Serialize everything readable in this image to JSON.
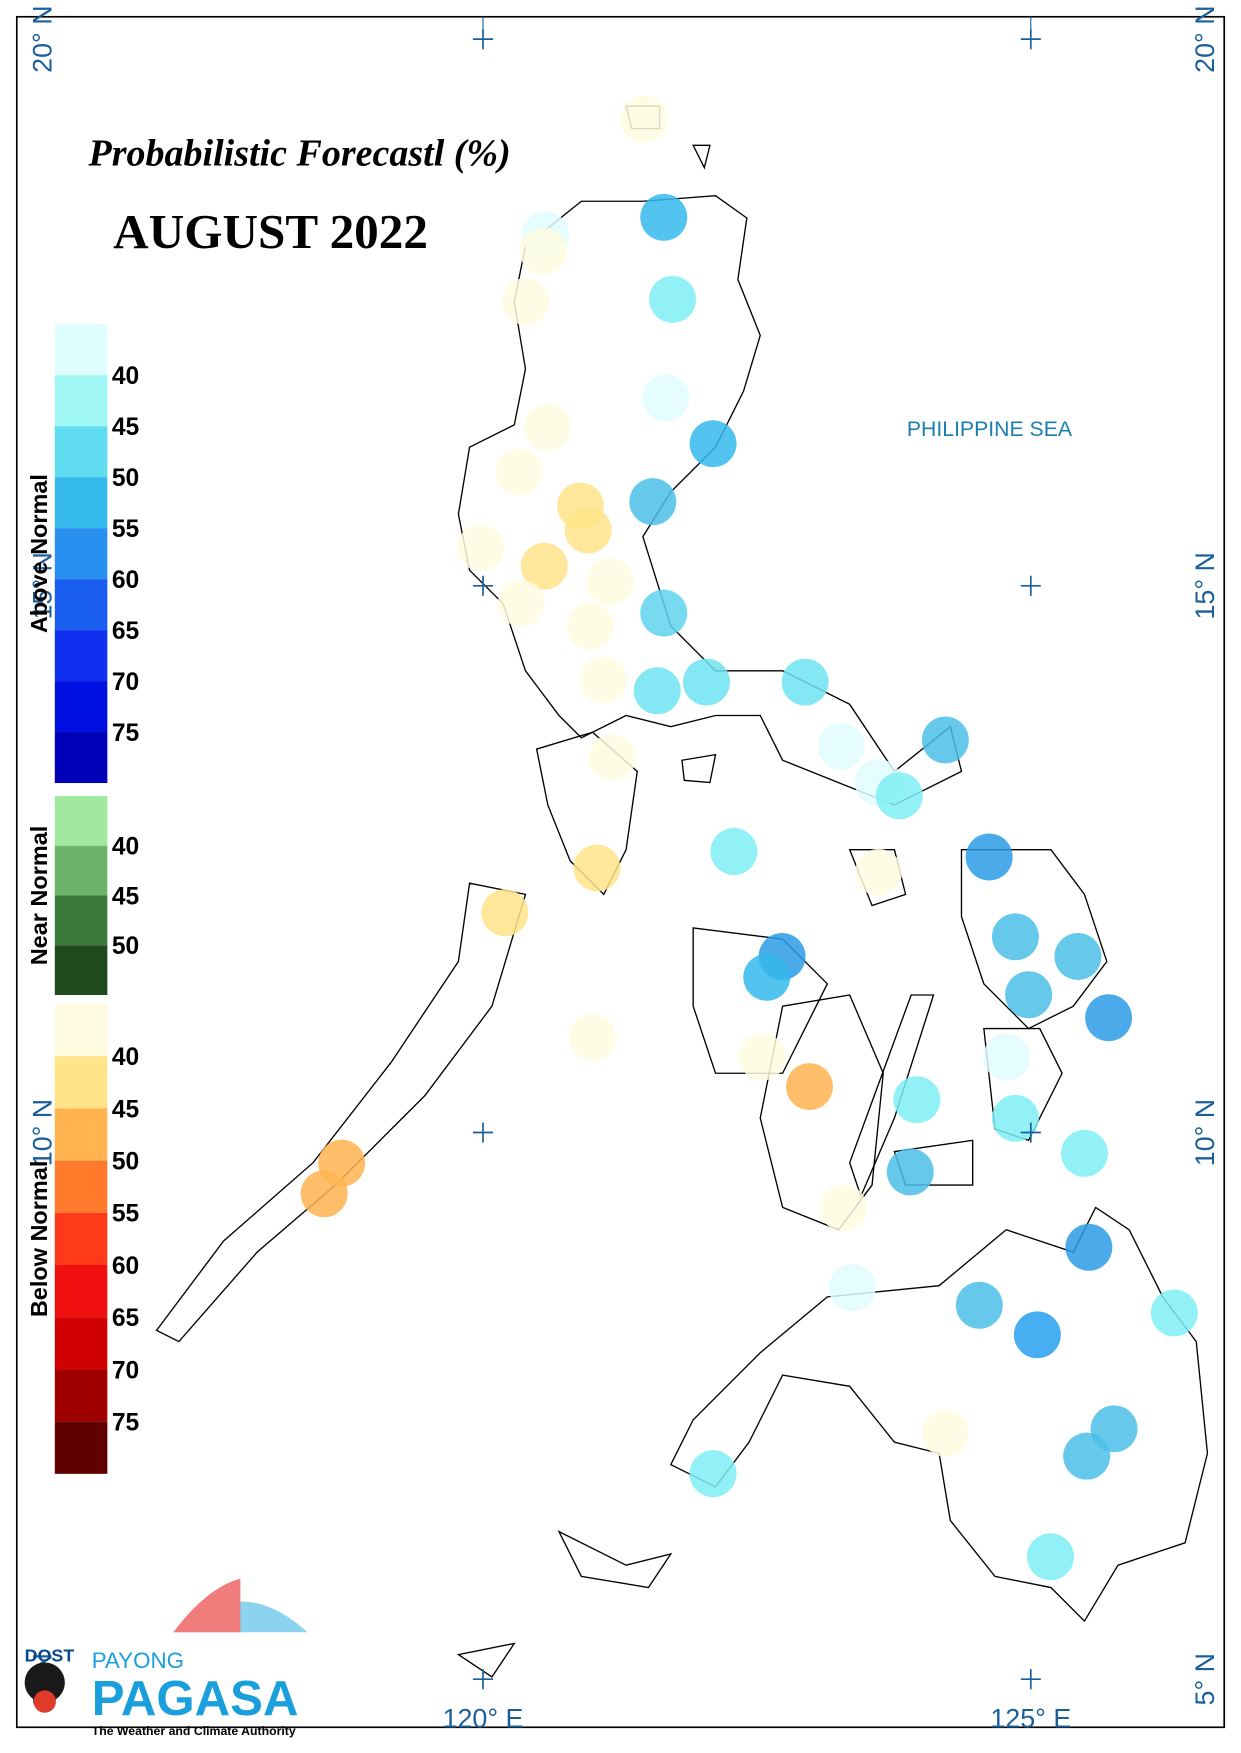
{
  "chart_data": {
    "type": "map",
    "title": "Probabilistic Forecastl (%)",
    "subtitle": "AUGUST 2022",
    "sea_label": "PHILIPPINE SEA",
    "xticks": [
      {
        "value": 120,
        "label": "120° E"
      },
      {
        "value": 125,
        "label": "125° E"
      }
    ],
    "yticks": [
      {
        "value": 20,
        "label": "20° N"
      },
      {
        "value": 15,
        "label": "15° N"
      },
      {
        "value": 10,
        "label": "10° N"
      },
      {
        "value": 5,
        "label": "5° N"
      }
    ],
    "legend": [
      {
        "title": "Above Normal",
        "colors": [
          "#e0fdff",
          "#a0f5f5",
          "#5fdcf0",
          "#35b8ec",
          "#2890f0",
          "#1a5ef0",
          "#0f30f0",
          "#0010e0",
          "#0000b8"
        ],
        "labels": [
          40,
          45,
          50,
          55,
          60,
          65,
          70,
          75
        ]
      },
      {
        "title": "Near Normal",
        "colors": [
          "#a0e8a0",
          "#6cb46c",
          "#3c7a3c",
          "#1e4a1e"
        ],
        "labels": [
          40,
          45,
          50
        ]
      },
      {
        "title": "Below Normal",
        "colors": [
          "#fffbe0",
          "#ffe48a",
          "#ffb450",
          "#ff7a2a",
          "#ff3a1a",
          "#f01010",
          "#d00000",
          "#a00000",
          "#600000"
        ],
        "labels": [
          40,
          45,
          50,
          55,
          60,
          65,
          70,
          75
        ]
      }
    ],
    "stations": [
      {
        "lon": 121.47,
        "lat": 19.27,
        "color": "#fffbe0"
      },
      {
        "lon": 121.65,
        "lat": 18.37,
        "color": "#35b8ec"
      },
      {
        "lon": 120.57,
        "lat": 18.21,
        "color": "#e0fdff"
      },
      {
        "lon": 120.55,
        "lat": 18.06,
        "color": "#fffbe0"
      },
      {
        "lon": 121.73,
        "lat": 17.62,
        "color": "#7eeef5"
      },
      {
        "lon": 120.39,
        "lat": 17.6,
        "color": "#fffbe0"
      },
      {
        "lon": 121.67,
        "lat": 16.72,
        "color": "#e0fdff"
      },
      {
        "lon": 120.59,
        "lat": 16.45,
        "color": "#fffbe0"
      },
      {
        "lon": 122.1,
        "lat": 16.3,
        "color": "#35b8ec"
      },
      {
        "lon": 120.33,
        "lat": 16.04,
        "color": "#fffbe0"
      },
      {
        "lon": 121.55,
        "lat": 15.77,
        "color": "#4bbfe8"
      },
      {
        "lon": 120.89,
        "lat": 15.73,
        "color": "#ffe48a"
      },
      {
        "lon": 120.96,
        "lat": 15.51,
        "color": "#ffe48a"
      },
      {
        "lon": 119.98,
        "lat": 15.35,
        "color": "#fffbe0"
      },
      {
        "lon": 120.56,
        "lat": 15.18,
        "color": "#ffe48a"
      },
      {
        "lon": 121.16,
        "lat": 15.04,
        "color": "#fffbe0"
      },
      {
        "lon": 120.35,
        "lat": 14.84,
        "color": "#fffbe0"
      },
      {
        "lon": 120.98,
        "lat": 14.63,
        "color": "#fffbe0"
      },
      {
        "lon": 121.65,
        "lat": 14.75,
        "color": "#5fd3ef"
      },
      {
        "lon": 121.1,
        "lat": 14.14,
        "color": "#fffbe0"
      },
      {
        "lon": 121.59,
        "lat": 14.04,
        "color": "#6ee4f2"
      },
      {
        "lon": 122.04,
        "lat": 14.12,
        "color": "#6ee4f2"
      },
      {
        "lon": 122.94,
        "lat": 14.12,
        "color": "#6ee4f2"
      },
      {
        "lon": 124.22,
        "lat": 13.59,
        "color": "#4bbfe8"
      },
      {
        "lon": 123.27,
        "lat": 13.53,
        "color": "#e0fdff"
      },
      {
        "lon": 121.18,
        "lat": 13.43,
        "color": "#fffbe0"
      },
      {
        "lon": 123.61,
        "lat": 13.2,
        "color": "#e0fdff"
      },
      {
        "lon": 123.8,
        "lat": 13.08,
        "color": "#7eeef5"
      },
      {
        "lon": 122.29,
        "lat": 12.57,
        "color": "#7eeef5"
      },
      {
        "lon": 124.62,
        "lat": 12.52,
        "color": "#2a9be6"
      },
      {
        "lon": 121.04,
        "lat": 12.42,
        "color": "#ffe48a"
      },
      {
        "lon": 123.61,
        "lat": 12.38,
        "color": "#fffbe0"
      },
      {
        "lon": 120.2,
        "lat": 12.01,
        "color": "#ffe48a"
      },
      {
        "lon": 124.86,
        "lat": 11.79,
        "color": "#4bbfe8"
      },
      {
        "lon": 125.43,
        "lat": 11.61,
        "color": "#4bbfe8"
      },
      {
        "lon": 122.73,
        "lat": 11.61,
        "color": "#2a9be6"
      },
      {
        "lon": 122.59,
        "lat": 11.42,
        "color": "#35b8ec"
      },
      {
        "lon": 124.98,
        "lat": 11.26,
        "color": "#4bbfe8"
      },
      {
        "lon": 125.71,
        "lat": 11.05,
        "color": "#2a9be6"
      },
      {
        "lon": 121.0,
        "lat": 10.87,
        "color": "#fffbe0"
      },
      {
        "lon": 122.55,
        "lat": 10.69,
        "color": "#fffbe0"
      },
      {
        "lon": 124.78,
        "lat": 10.69,
        "color": "#e0fdff"
      },
      {
        "lon": 122.98,
        "lat": 10.42,
        "color": "#ffb450"
      },
      {
        "lon": 123.96,
        "lat": 10.3,
        "color": "#7eeef5"
      },
      {
        "lon": 124.86,
        "lat": 10.13,
        "color": "#7eeef5"
      },
      {
        "lon": 118.71,
        "lat": 9.72,
        "color": "#ffb450"
      },
      {
        "lon": 125.49,
        "lat": 9.81,
        "color": "#7eeef5"
      },
      {
        "lon": 123.9,
        "lat": 9.64,
        "color": "#4bbfe8"
      },
      {
        "lon": 118.55,
        "lat": 9.44,
        "color": "#ffb450"
      },
      {
        "lon": 123.29,
        "lat": 9.31,
        "color": "#fffbe0"
      },
      {
        "lon": 125.53,
        "lat": 8.95,
        "color": "#2a9be6"
      },
      {
        "lon": 123.37,
        "lat": 8.58,
        "color": "#e0fdff"
      },
      {
        "lon": 124.53,
        "lat": 8.42,
        "color": "#4bbfe8"
      },
      {
        "lon": 126.31,
        "lat": 8.35,
        "color": "#7eeef5"
      },
      {
        "lon": 125.06,
        "lat": 8.15,
        "color": "#28a0f0"
      },
      {
        "lon": 124.22,
        "lat": 7.25,
        "color": "#fffbe0"
      },
      {
        "lon": 125.76,
        "lat": 7.29,
        "color": "#4bbfe8"
      },
      {
        "lon": 125.51,
        "lat": 7.04,
        "color": "#4bbfe8"
      },
      {
        "lon": 122.1,
        "lat": 6.88,
        "color": "#7eeef5"
      },
      {
        "lon": 125.18,
        "lat": 6.12,
        "color": "#7eeef5"
      }
    ]
  },
  "logo": {
    "agency": "DOST",
    "brand_top": "PAYONG",
    "brand": "PAGASA",
    "tagline": "The Weather and Climate Authority"
  }
}
